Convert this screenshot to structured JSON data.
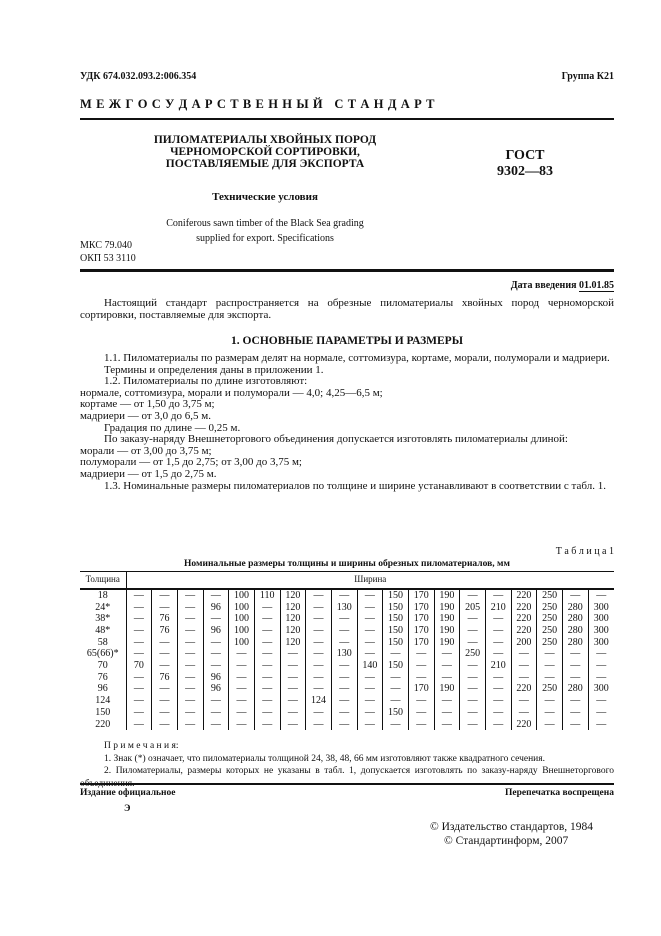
{
  "header": {
    "udk": "УДК  674.032.093.2:006.354",
    "group": "Группа  К21",
    "interstate": "М Е Ж Г О С У Д А Р С Т В Е Н Н Ы Й   С Т А Н Д А Р Т"
  },
  "title": {
    "line1": "ПИЛОМАТЕРИАЛЫ ХВОЙНЫХ ПОРОД",
    "line2": "ЧЕРНОМОРСКОЙ СОРТИРОВКИ,",
    "line3": "ПОСТАВЛЯЕМЫЕ ДЛЯ ЭКСПОРТА",
    "subtitle": "Технические условия",
    "english1": "Coniferous sawn timber of the Black Sea grading",
    "english2": "supplied for export. Specifications",
    "gost1": "ГОСТ",
    "gost2": "9302—83",
    "mks": "МКС 79.040",
    "okp": "ОКП 53 3110",
    "date_label": "Дата введения",
    "date_value": "01.01.85"
  },
  "body": {
    "intro": "Настоящий стандарт распространяется на обрезные пиломатериалы хвойных пород черноморской сортировки, поставляемые для экспорта.",
    "section1": "1. ОСНОВНЫЕ ПАРАМЕТРЫ И РАЗМЕРЫ",
    "p1_1": "1.1. Пиломатериалы по размерам делят на нормале, соттомизура, кортаме, морали, полуморали и мадриери.",
    "p_terms": "Термины и определения даны в приложении 1.",
    "p1_2": "1.2. Пиломатериалы по длине изготовляют:",
    "l1": "нормале, соттомизура, морали и полуморали — 4,0; 4,25—6,5 м;",
    "l2": "кортаме — от 1,50 до 3,75 м;",
    "l3": "мадриери — от 3,0 до 6,5 м.",
    "l4": "Градация по длине — 0,25 м.",
    "p_order": "По заказу-наряду Внешнеторгового объединения допускается изготовлять пиломатериалы длиной:",
    "l5": "морали — от 3,00 до 3,75 м;",
    "l6": "полуморали — от 1,5 до 2,75; от 3,00 до 3,75 м;",
    "l7": "мадриери — от 1,5 до 2,75 м.",
    "p1_3": "1.3. Номинальные размеры пиломатериалов по толщине и ширине устанавливают в соответствии с табл. 1."
  },
  "table": {
    "label": "Т а б л и ц а  1",
    "caption": "Номинальные размеры толщины и ширины обрезных пиломатериалов, мм",
    "col_thickness": "Толщина",
    "col_width": "Ширина",
    "rows": [
      [
        "18",
        "—",
        "—",
        "—",
        "—",
        "100",
        "110",
        "120",
        "—",
        "—",
        "—",
        "150",
        "170",
        "190",
        "—",
        "—",
        "220",
        "250",
        "—",
        "—"
      ],
      [
        "24*",
        "—",
        "—",
        "—",
        "96",
        "100",
        "—",
        "120",
        "—",
        "130",
        "—",
        "150",
        "170",
        "190",
        "205",
        "210",
        "220",
        "250",
        "280",
        "300"
      ],
      [
        "38*",
        "—",
        "76",
        "—",
        "—",
        "100",
        "—",
        "120",
        "—",
        "—",
        "—",
        "150",
        "170",
        "190",
        "—",
        "—",
        "220",
        "250",
        "280",
        "300"
      ],
      [
        "48*",
        "—",
        "76",
        "—",
        "96",
        "100",
        "—",
        "120",
        "—",
        "—",
        "—",
        "150",
        "170",
        "190",
        "—",
        "—",
        "220",
        "250",
        "280",
        "300"
      ],
      [
        "58",
        "—",
        "—",
        "—",
        "—",
        "100",
        "—",
        "120",
        "—",
        "—",
        "—",
        "150",
        "170",
        "190",
        "—",
        "—",
        "200",
        "250",
        "280",
        "300"
      ],
      [
        "65(66)*",
        "—",
        "—",
        "—",
        "—",
        "—",
        "—",
        "—",
        "—",
        "130",
        "—",
        "—",
        "—",
        "—",
        "250",
        "—",
        "—",
        "—",
        "—",
        "—"
      ],
      [
        "70",
        "70",
        "—",
        "—",
        "—",
        "—",
        "—",
        "—",
        "—",
        "—",
        "140",
        "150",
        "—",
        "—",
        "—",
        "210",
        "—",
        "—",
        "—",
        "—"
      ],
      [
        "76",
        "—",
        "76",
        "—",
        "96",
        "—",
        "—",
        "—",
        "—",
        "—",
        "—",
        "—",
        "—",
        "—",
        "—",
        "—",
        "—",
        "—",
        "—",
        "—"
      ],
      [
        "96",
        "—",
        "—",
        "—",
        "96",
        "—",
        "—",
        "—",
        "—",
        "—",
        "—",
        "—",
        "170",
        "190",
        "—",
        "—",
        "220",
        "250",
        "280",
        "300"
      ],
      [
        "124",
        "—",
        "—",
        "—",
        "—",
        "—",
        "—",
        "—",
        "124",
        "—",
        "—",
        "—",
        "—",
        "—",
        "—",
        "—",
        "—",
        "—",
        "—",
        "—"
      ],
      [
        "150",
        "—",
        "—",
        "—",
        "—",
        "—",
        "—",
        "—",
        "—",
        "—",
        "—",
        "150",
        "—",
        "—",
        "—",
        "—",
        "—",
        "—",
        "—",
        "—"
      ],
      [
        "220",
        "—",
        "—",
        "—",
        "—",
        "—",
        "—",
        "—",
        "—",
        "—",
        "—",
        "—",
        "—",
        "—",
        "—",
        "—",
        "220",
        "—",
        "—",
        "—"
      ]
    ],
    "notes_title": "П р и м е ч а н и я:",
    "note1": "1. Знак (*) означает, что пиломатериалы толщиной 24, 38, 48, 66 мм изготовляют также квадратного сечения.",
    "note2": "2. Пиломатериалы, размеры которых не указаны в табл. 1, допускается изготовлять по заказу-наряду Внешнеторгового объединения."
  },
  "footer": {
    "official": "Издание  официальное",
    "reprint": "Перепечатка  воспрещена",
    "e": "Э",
    "copy1": "©  Издательство стандартов, 1984",
    "copy2": "©  Стандартинформ, 2007"
  }
}
